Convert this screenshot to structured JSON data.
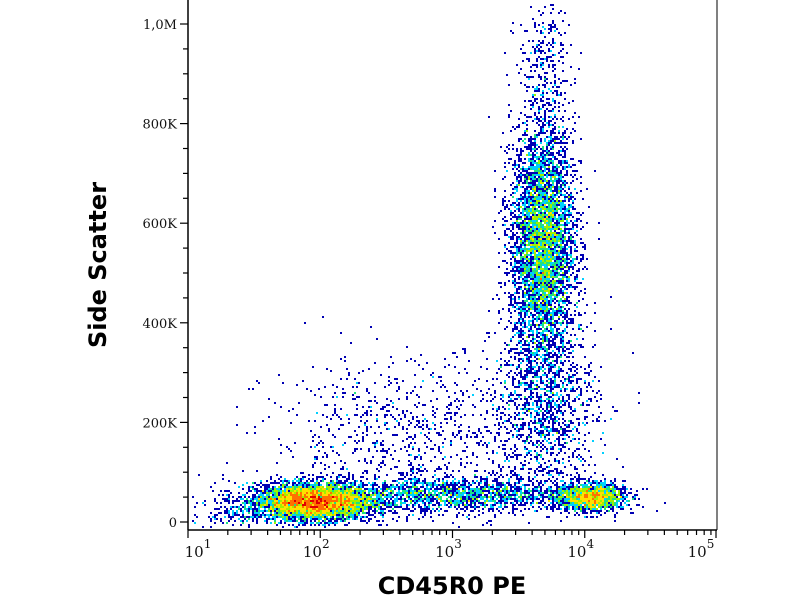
{
  "chart_data": {
    "type": "scatter",
    "subtype": "density-dot-plot",
    "xlabel": "CD45R0 PE",
    "ylabel": "Side Scatter",
    "x_scale": "log",
    "xlim": [
      10,
      100000
    ],
    "ylim": [
      -12000,
      1050000
    ],
    "x_ticks": [
      {
        "value": 10,
        "base": "10",
        "exp": "1"
      },
      {
        "value": 100,
        "base": "10",
        "exp": "2"
      },
      {
        "value": 1000,
        "base": "10",
        "exp": "3"
      },
      {
        "value": 10000,
        "base": "10",
        "exp": "4"
      },
      {
        "value": 100000,
        "base": "10",
        "exp": "5"
      }
    ],
    "y_ticks": [
      {
        "value": 0,
        "label": "0"
      },
      {
        "value": 200000,
        "label": "200K"
      },
      {
        "value": 400000,
        "label": "400K"
      },
      {
        "value": 600000,
        "label": "600K"
      },
      {
        "value": 800000,
        "label": "800K"
      },
      {
        "value": 1000000,
        "label": "1,0M"
      }
    ],
    "grid": false,
    "legend": "none",
    "colormap": [
      "#0000b4",
      "#0050ff",
      "#00d0ff",
      "#20e080",
      "#a0f000",
      "#ffe000",
      "#ff7000",
      "#e00000"
    ],
    "populations": [
      {
        "x_center": 90,
        "x_log_sd": 0.22,
        "y_center": 40000,
        "y_sd": 18000,
        "count": 5200
      },
      {
        "x_center": 4800,
        "x_log_sd": 0.12,
        "y_center": 560000,
        "y_sd": 120000,
        "count": 5200
      },
      {
        "x_center": 11000,
        "x_log_sd": 0.13,
        "y_center": 50000,
        "y_sd": 14000,
        "count": 1600
      },
      {
        "x_center": 900,
        "x_log_sd": 0.5,
        "y_center": 55000,
        "y_sd": 18000,
        "count": 1900
      },
      {
        "x_center": 500,
        "x_log_sd": 0.55,
        "y_center": 170000,
        "y_sd": 80000,
        "count": 900
      },
      {
        "x_center": 5000,
        "x_log_sd": 0.2,
        "y_center": 230000,
        "y_sd": 90000,
        "count": 1300
      },
      {
        "x_center": 25,
        "x_log_sd": 0.2,
        "y_center": 20000,
        "y_sd": 25000,
        "count": 250
      },
      {
        "x_center": 5000,
        "x_log_sd": 0.1,
        "y_center": 920000,
        "y_sd": 60000,
        "count": 250
      }
    ]
  }
}
